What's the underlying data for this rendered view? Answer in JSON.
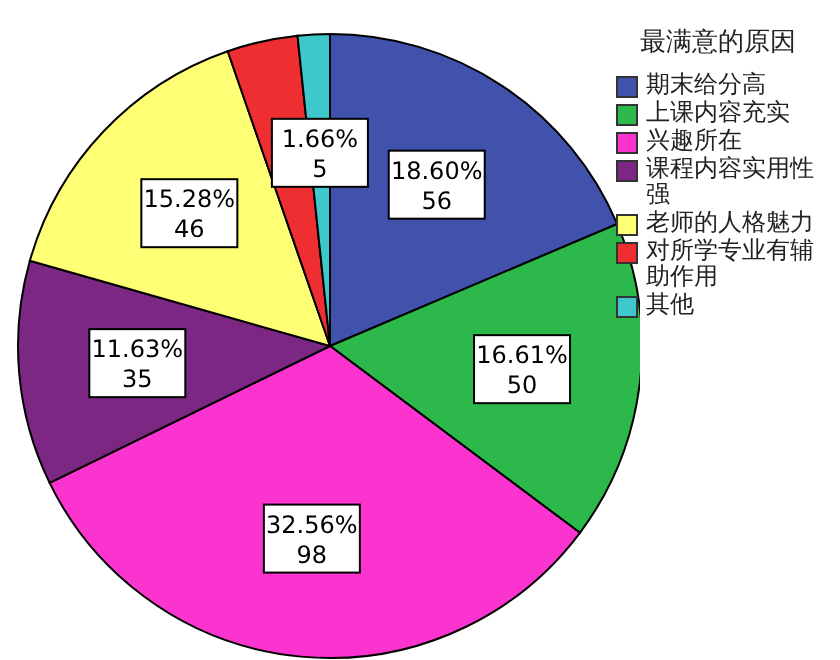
{
  "chart_data": {
    "type": "pie",
    "legend_title": "最满意的原因",
    "legend": "right",
    "categories": [
      "期末给分高",
      "上课内容充实",
      "兴趣所在",
      "课程内容实用性强",
      "老师的人格魅力",
      "对所学专业有辅助作用",
      "其他"
    ],
    "values": [
      56,
      50,
      98,
      35,
      46,
      11,
      5
    ],
    "colors": [
      "#4152ad",
      "#2cb84a",
      "#fb34d0",
      "#7c2783",
      "#ffff75",
      "#ee2e31",
      "#3ec8cb"
    ],
    "value_labels": [
      "18.60%\n56",
      "16.61%\n50",
      "32.56%\n98",
      "11.63%\n35",
      "15.28%\n46",
      null,
      "1.66%\n5"
    ]
  }
}
